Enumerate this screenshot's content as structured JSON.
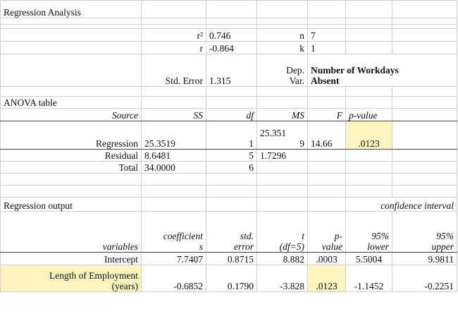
{
  "title": "Regression Analysis",
  "stats": {
    "r2_label": "r²",
    "r2_value": "0.746",
    "r_label": "r",
    "r_value": "-0.864",
    "n_label": "n",
    "n_value": "7",
    "k_label": "k",
    "k_value": "1",
    "std_error_label": "Std. Error",
    "std_error_value": "1.315",
    "dep_var_label_1": "Dep.",
    "dep_var_label_2": "Var.",
    "dep_var_value_1": "Number of Workdays",
    "dep_var_value_2": "Absent"
  },
  "anova": {
    "title": "ANOVA table",
    "headers": [
      "Source",
      "SS",
      "df",
      "MS",
      "F",
      "p-value"
    ],
    "regression": {
      "source": "Regression",
      "ss": "25.3519",
      "df": "1",
      "ms_1": "25.351",
      "ms_2": "9",
      "f": "14.66",
      "p": ".0123"
    },
    "residual": {
      "source": "Residual",
      "ss": "8.6481",
      "df": "5",
      "ms": "1.7296"
    },
    "total": {
      "source": "Total",
      "ss": "34.0000",
      "df": "6"
    }
  },
  "regression_output": {
    "title": "Regression output",
    "confidence_label": "confidence interval",
    "headers": {
      "variables": "variables",
      "coef_1": "coefficient",
      "coef_2": "s",
      "se_1": "std.",
      "se_2": "error",
      "t_1": "t",
      "t_2": "(df=5)",
      "p_1": "p-",
      "p_2": "value",
      "lower_1": "95%",
      "lower_2": "lower",
      "upper_1": "95%",
      "upper_2": "upper"
    },
    "rows": [
      {
        "variable": "Intercept",
        "coef": "7.7407",
        "se": "0.8715",
        "t": "8.882",
        "p": ".0003",
        "lower": "5.5004",
        "upper": "9.9811"
      },
      {
        "variable_1": "Length of Employment",
        "variable_2": "(years)",
        "coef": "-0.6852",
        "se": "0.1790",
        "t": "-3.828",
        "p": ".0123",
        "lower": "-1.1452",
        "upper": "-0.2251"
      }
    ]
  },
  "colors": {
    "highlight": "#fdf5c0",
    "gridline": "#cfcfcf",
    "rule": "#444444"
  }
}
